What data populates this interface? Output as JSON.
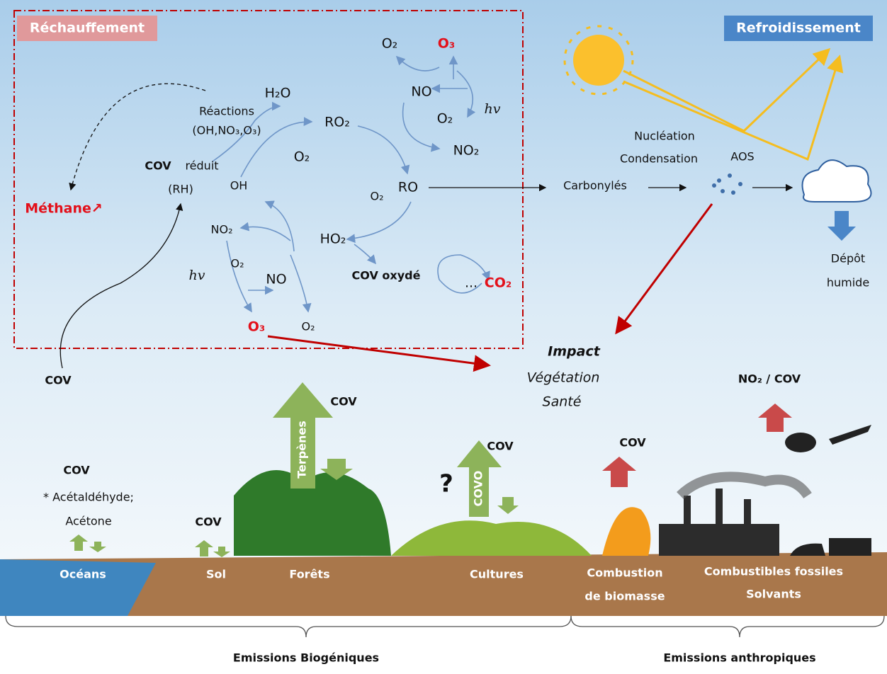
{
  "climate": {
    "warming": "Réchauffement",
    "cooling": "Refroidissement"
  },
  "chemistry": {
    "o2_top": "O₂",
    "o3_top": "O₃",
    "no_top": "NO",
    "hv_top": "hv",
    "o2_hv": "O₂",
    "h2o": "H₂O",
    "reactions": "Réactions",
    "oxidants": "(OH,NO₃,O₃)",
    "ro2": "RO₂",
    "o2_mid": "O₂",
    "no2_right": "NO₂",
    "cov_bold": "COV",
    "reduced": "réduit",
    "rh": "(RH)",
    "oh": "OH",
    "ro": "RO",
    "o2_ro": "O₂",
    "no2_left": "NO₂",
    "ho2": "HO₂",
    "o2_low": "O₂",
    "hv_low": "hv",
    "no_low": "NO",
    "cov_oxidized": "COV oxydé",
    "ellipsis": "...",
    "co2": "CO₂",
    "o3_low": "O₃",
    "o2_bottom": "O₂"
  },
  "methane": "Méthane↗",
  "aerosol": {
    "carbonyls": "Carbonylés",
    "nucleation": "Nucléation",
    "condensation": "Condensation",
    "aos": "AOS",
    "deposit_1": "Dépôt",
    "deposit_2": "humide"
  },
  "impact": {
    "title": "Impact",
    "vegetation": "Végétation",
    "health": "Santé"
  },
  "emissions": {
    "cov_left": "COV",
    "no2_cov": "NO₂ / COV",
    "cov_forest": "COV",
    "terpenes": "Terpènes",
    "cov_crops": "COV",
    "covo": "COVO",
    "question": "?",
    "cov_fire": "COV",
    "cov_ocean": "COV",
    "acetaldehyde": "* Acétaldéhyde;",
    "acetone": "Acétone",
    "cov_soil": "COV"
  },
  "sources": {
    "oceans": "Océans",
    "soil": "Sol",
    "forests": "Forêts",
    "crops": "Cultures",
    "combustion_1": "Combustion",
    "combustion_2": "de biomasse",
    "fossil": "Combustibles fossiles",
    "solvents": "Solvants"
  },
  "groups": {
    "biogenic": "Emissions Biogéniques",
    "anthropogenic": "Emissions anthropiques"
  }
}
